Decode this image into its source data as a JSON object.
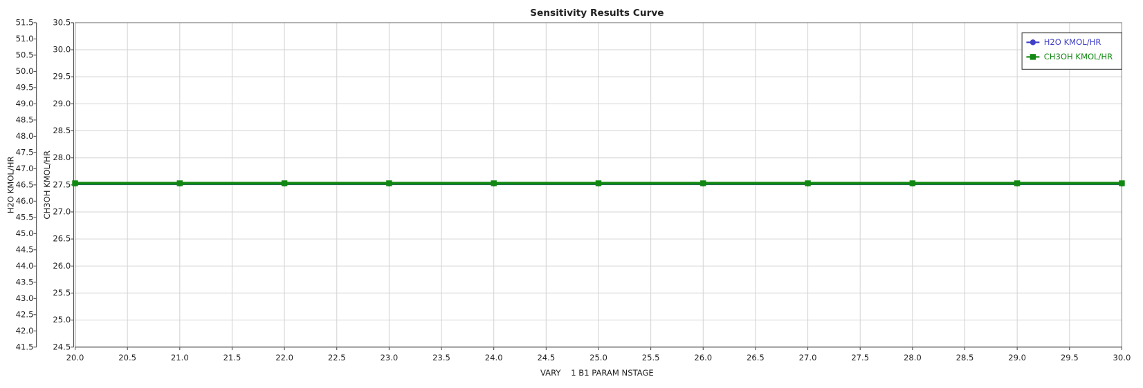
{
  "chart_data": {
    "type": "line",
    "title": "Sensitivity Results Curve",
    "x_label": "VARY    1 B1 PARAM NSTAGE",
    "y_label": "H2O KMOL/HR",
    "y2_label": "CH3OH KMOL/HR",
    "x": [
      20,
      21,
      22,
      23,
      24,
      25,
      26,
      27,
      28,
      29,
      30
    ],
    "series": [
      {
        "name": "H2O KMOL/HR",
        "color": "#4040c8",
        "marker": "circle",
        "values": [
          46.54,
          46.54,
          46.54,
          46.54,
          46.54,
          46.54,
          46.54,
          46.54,
          46.54,
          46.54,
          46.54
        ]
      },
      {
        "name": "CH3OH KMOL/HR",
        "color": "#118811",
        "marker": "square",
        "axis": "y2",
        "values": [
          27.53,
          27.53,
          27.53,
          27.53,
          27.53,
          27.53,
          27.53,
          27.53,
          27.53,
          27.53,
          27.53
        ]
      }
    ],
    "xlim": [
      20,
      30
    ],
    "xticks": [
      {
        "value": 20,
        "label": "20.0"
      },
      20.5,
      {
        "value": 21,
        "label": "21.0"
      },
      21.5,
      {
        "value": 22,
        "label": "22.0"
      },
      22.5,
      {
        "value": 23,
        "label": "23.0"
      },
      23.5,
      {
        "value": 24,
        "label": "24.0"
      },
      24.5,
      {
        "value": 25,
        "label": "25.0"
      },
      25.5,
      {
        "value": 26,
        "label": "26.0"
      },
      26.5,
      {
        "value": 27,
        "label": "27.0"
      },
      27.5,
      {
        "value": 28,
        "label": "28.0"
      },
      28.5,
      {
        "value": 29,
        "label": "29.0"
      },
      29.5,
      {
        "value": 30,
        "label": "30.0"
      }
    ],
    "ylim": [
      41.5,
      51.5
    ],
    "yticks": [
      41.5,
      {
        "value": 42,
        "label": "42.0"
      },
      42.5,
      {
        "value": 43,
        "label": "43.0"
      },
      43.5,
      {
        "value": 44,
        "label": "44.0"
      },
      44.5,
      {
        "value": 45,
        "label": "45.0"
      },
      45.5,
      {
        "value": 46,
        "label": "46.0"
      },
      46.5,
      {
        "value": 47,
        "label": "47.0"
      },
      47.5,
      {
        "value": 48,
        "label": "48.0"
      },
      48.5,
      {
        "value": 49,
        "label": "49.0"
      },
      49.5,
      {
        "value": 50,
        "label": "50.0"
      },
      50.5,
      {
        "value": 51,
        "label": "51.0"
      },
      51.5
    ],
    "y2lim": [
      24.5,
      30.5
    ],
    "y2ticks": [
      24.5,
      {
        "value": 25,
        "label": "25.0"
      },
      25.5,
      {
        "value": 26,
        "label": "26.0"
      },
      26.5,
      {
        "value": 27,
        "label": "27.0"
      },
      27.5,
      {
        "value": 28,
        "label": "28.0"
      },
      28.5,
      {
        "value": 29,
        "label": "29.0"
      },
      29.5,
      {
        "value": 30,
        "label": "30.0"
      },
      30.5
    ],
    "grid": true,
    "legend": "top-right"
  }
}
